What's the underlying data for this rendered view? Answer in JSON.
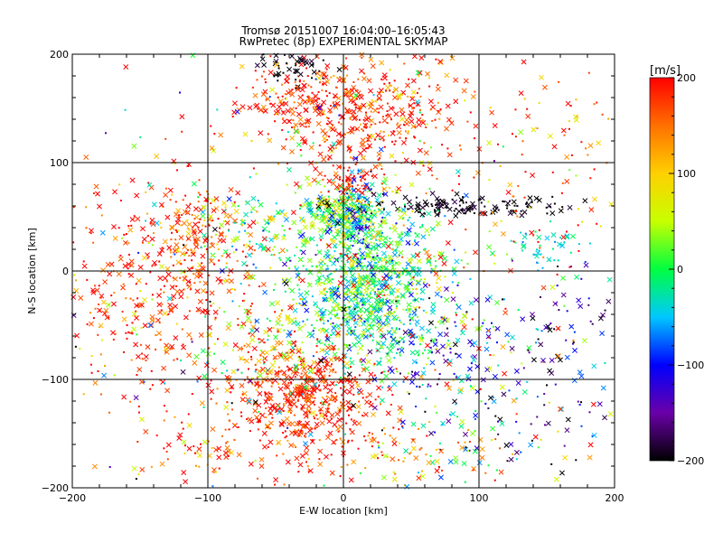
{
  "chart_data": {
    "type": "scatter",
    "title": "Tromsø 20151007 16:04:00–16:05:43",
    "subtitle": "RwPretec (8p) EXPERIMENTAL SKYMAP",
    "xlabel": "E-W location [km]",
    "ylabel": "N-S location [km]",
    "xlim": [
      -200,
      200
    ],
    "ylim": [
      -200,
      200
    ],
    "xticks": [
      -200,
      -100,
      0,
      100,
      200
    ],
    "yticks": [
      -200,
      -100,
      0,
      100,
      200
    ],
    "grid": true,
    "marker_types": [
      "cross",
      "dot"
    ],
    "colorbar": {
      "label": "[m/s]",
      "range": [
        -200,
        200
      ],
      "ticks": [
        200,
        100,
        0,
        -100,
        -200
      ],
      "colormap": [
        "#000000",
        "#6a00a8",
        "#0000ff",
        "#00c8ff",
        "#00ff40",
        "#c8ff00",
        "#ffd000",
        "#ff7000",
        "#ff0000"
      ]
    },
    "clusters": [
      {
        "x": 15,
        "y": -15,
        "sx": 30,
        "sy": 38,
        "n": 950,
        "v": 0,
        "vs": 45
      },
      {
        "x": 0,
        "y": 55,
        "sx": 14,
        "sy": 10,
        "n": 230,
        "v": 20,
        "vs": 50
      },
      {
        "x": -25,
        "y": -110,
        "sx": 28,
        "sy": 20,
        "n": 420,
        "v": 185,
        "vs": 35
      },
      {
        "x": -20,
        "y": -150,
        "sx": 25,
        "sy": 20,
        "n": 110,
        "v": 180,
        "vs": 45
      },
      {
        "x": -110,
        "y": 35,
        "sx": 18,
        "sy": 22,
        "n": 150,
        "v": 170,
        "vs": 45
      },
      {
        "x": -140,
        "y": -20,
        "sx": 35,
        "sy": 55,
        "n": 300,
        "v": 185,
        "vs": 45
      },
      {
        "x": -30,
        "y": 155,
        "sx": 28,
        "sy": 20,
        "n": 200,
        "v": 185,
        "vs": 40
      },
      {
        "x": 25,
        "y": 155,
        "sx": 25,
        "sy": 20,
        "n": 180,
        "v": 180,
        "vs": 50
      },
      {
        "x": 10,
        "y": 115,
        "sx": 20,
        "sy": 18,
        "n": 80,
        "v": 180,
        "vs": 35
      },
      {
        "x": 5,
        "y": 85,
        "sx": 10,
        "sy": 10,
        "n": 60,
        "v": 190,
        "vs": 20
      },
      {
        "x": 85,
        "y": 60,
        "sx": 45,
        "sy": 5,
        "n": 150,
        "v": -195,
        "vs": 10
      },
      {
        "x": 10,
        "y": 50,
        "sx": 8,
        "sy": 22,
        "n": 90,
        "v": -90,
        "vs": 30
      },
      {
        "x": 150,
        "y": 20,
        "sx": 15,
        "sy": 12,
        "n": 45,
        "v": -30,
        "vs": 25
      },
      {
        "x": -35,
        "y": 190,
        "sx": 14,
        "sy": 7,
        "n": 45,
        "v": -200,
        "vs": 10
      },
      {
        "x": 60,
        "y": 130,
        "sx": 20,
        "sy": 25,
        "n": 50,
        "v": 160,
        "vs": 60
      },
      {
        "x": 60,
        "y": -70,
        "sx": 28,
        "sy": 25,
        "n": 120,
        "v": -110,
        "vs": 55
      },
      {
        "x": 110,
        "y": -130,
        "sx": 40,
        "sy": 40,
        "n": 110,
        "v": -80,
        "vs": 110
      },
      {
        "x": 150,
        "y": 110,
        "sx": 30,
        "sy": 40,
        "n": 70,
        "v": 170,
        "vs": 60
      },
      {
        "x": -70,
        "y": 40,
        "sx": 20,
        "sy": 20,
        "n": 90,
        "v": 20,
        "vs": 60
      },
      {
        "x": -60,
        "y": -60,
        "sx": 25,
        "sy": 25,
        "n": 110,
        "v": 80,
        "vs": 80
      },
      {
        "x": 160,
        "y": -60,
        "sx": 25,
        "sy": 35,
        "n": 60,
        "v": -150,
        "vs": 60
      },
      {
        "x": 0,
        "y": 0,
        "sx": 120,
        "sy": 120,
        "n": 650,
        "v": 80,
        "vs": 150
      },
      {
        "x": -100,
        "y": -160,
        "sx": 25,
        "sy": 20,
        "n": 70,
        "v": 170,
        "vs": 50
      },
      {
        "x": 50,
        "y": -170,
        "sx": 30,
        "sy": 15,
        "n": 70,
        "v": 150,
        "vs": 80
      }
    ]
  }
}
